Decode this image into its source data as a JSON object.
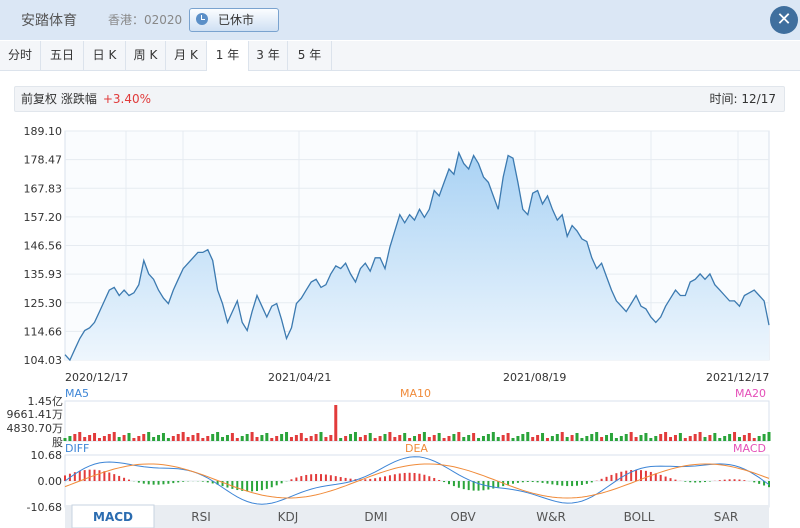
{
  "header": {
    "title": "安踏体育",
    "code": "香港：02020",
    "status_label": "已休市",
    "close_label": "✕"
  },
  "tabs": [
    {
      "label": "分时"
    },
    {
      "label": "五日"
    },
    {
      "label": "日 K"
    },
    {
      "label": "周 K"
    },
    {
      "label": "月 K"
    },
    {
      "label": "1 年"
    },
    {
      "label": "3 年"
    },
    {
      "label": "5 年"
    }
  ],
  "active_tab": 5,
  "infobar": {
    "adjust": "前复权",
    "change_label": "涨跌幅",
    "change_value": "+3.40%",
    "time_label": "时间: 12/17"
  },
  "colors": {
    "line": "#3c7ab0",
    "fill_top": "#a9d2f4",
    "fill_bottom": "#eef6fd",
    "up": "#e23b3b",
    "down": "#2aa43a",
    "ma5": "#3d85d6",
    "ma10": "#f08b3a",
    "ma20": "#e44fb8"
  },
  "chart_data": [
    {
      "type": "area",
      "y_ticks": [
        "189.10",
        "178.47",
        "167.83",
        "157.20",
        "146.56",
        "135.93",
        "125.30",
        "114.66",
        "104.03"
      ],
      "ylim": [
        104.03,
        189.1
      ],
      "x_ticks": [
        "2020/12/17",
        "2021/04/21",
        "2021/08/19",
        "2021/12/17"
      ],
      "values": [
        106,
        104,
        108,
        112,
        115,
        116,
        118,
        122,
        126,
        130,
        131,
        128,
        130,
        128,
        129,
        132,
        141,
        136,
        134,
        130,
        127,
        125,
        130,
        134,
        138,
        140,
        142,
        144,
        144,
        145,
        141,
        130,
        125,
        118,
        122,
        126,
        118,
        115,
        122,
        128,
        124,
        120,
        124,
        125,
        119,
        112,
        116,
        125,
        127,
        130,
        133,
        134,
        131,
        132,
        136,
        139,
        138,
        140,
        136,
        133,
        138,
        140,
        137,
        142,
        142,
        138,
        146,
        152,
        158,
        155,
        158,
        156,
        160,
        157,
        160,
        167,
        165,
        170,
        175,
        173,
        181,
        177,
        175,
        180,
        177,
        172,
        170,
        165,
        160,
        172,
        180,
        179,
        170,
        160,
        158,
        166,
        167,
        162,
        165,
        160,
        156,
        158,
        150,
        154,
        152,
        149,
        148,
        142,
        138,
        140,
        135,
        130,
        126,
        124,
        122,
        125,
        128,
        124,
        123,
        120,
        118,
        120,
        124,
        127,
        130,
        128,
        128,
        133,
        134,
        136,
        134,
        136,
        132,
        130,
        128,
        126,
        126,
        124,
        128,
        129,
        130,
        128,
        126,
        117
      ],
      "series": [
        {
          "name": "MA5"
        },
        {
          "name": "MA10"
        },
        {
          "name": "MA20"
        }
      ]
    },
    {
      "type": "bar",
      "y_ticks": [
        "1.45亿",
        "9661.41万",
        "4830.70万",
        "股"
      ]
    },
    {
      "type": "line",
      "series": [
        {
          "name": "DIFF"
        },
        {
          "name": "DEA"
        },
        {
          "name": "MACD"
        }
      ],
      "y_ticks": [
        "10.68",
        "0.00",
        "-10.68"
      ],
      "ylim": [
        -10.68,
        10.68
      ]
    }
  ],
  "indicator_tabs": [
    "MACD",
    "RSI",
    "KDJ",
    "DMI",
    "OBV",
    "W&R",
    "BOLL",
    "SAR"
  ],
  "active_indicator": 0
}
